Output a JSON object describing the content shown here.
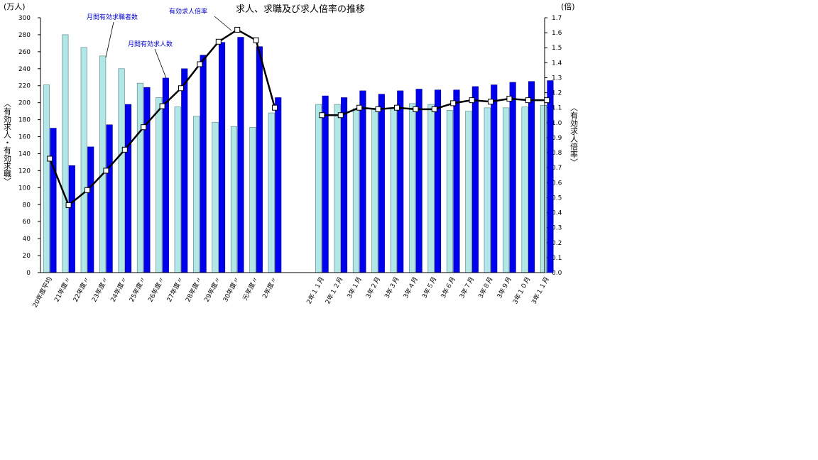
{
  "chart_data": {
    "type": "bar",
    "title": "求人、求職及び求人倍率の推移",
    "left_unit": "(万人)",
    "right_unit": "(倍)",
    "ylabel": "︿有効求人・有効求職﹀",
    "y2label": "︿有効求人倍率﹀",
    "ylim": [
      0,
      300
    ],
    "y2lim": [
      0,
      1.7
    ],
    "yticks": [
      "0",
      "20",
      "40",
      "60",
      "80",
      "100",
      "120",
      "140",
      "160",
      "180",
      "200",
      "220",
      "240",
      "260",
      "280",
      "300"
    ],
    "y2ticks": [
      "0.0",
      "0.1",
      "0.2",
      "0.3",
      "0.4",
      "0.5",
      "0.6",
      "0.7",
      "0.8",
      "0.9",
      "1.0",
      "1.1",
      "1.2",
      "1.3",
      "1.4",
      "1.5",
      "1.6",
      "1.7"
    ],
    "categories": [
      "20年度平均",
      "21年度〃",
      "22年度〃",
      "23年度〃",
      "24年度〃",
      "25年度〃",
      "26年度〃",
      "27年度〃",
      "28年度〃",
      "29年度〃",
      "30年度〃",
      "元年度〃",
      "2年度〃",
      "2年１１月",
      "2年１２月",
      "3年１月",
      "3年２月",
      "3年３月",
      "3年４月",
      "3年５月",
      "3年６月",
      "3年７月",
      "3年８月",
      "3年９月",
      "3年１０月",
      "3年１１月"
    ],
    "series": [
      {
        "name": "月間有効求職者数",
        "kind": "bar",
        "color": "#b3e6e6",
        "values": [
          221,
          280,
          265,
          255,
          240,
          223,
          206,
          195,
          184,
          177,
          172,
          171,
          188,
          198,
          198,
          193,
          192,
          193,
          199,
          198,
          191,
          190,
          194,
          194,
          195,
          197
        ]
      },
      {
        "name": "月間有効求人数",
        "kind": "bar",
        "color": "#0000ee",
        "values": [
          170,
          126,
          148,
          174,
          198,
          218,
          229,
          240,
          256,
          271,
          277,
          266,
          206,
          208,
          206,
          214,
          210,
          214,
          216,
          215,
          215,
          219,
          221,
          224,
          225,
          226
        ]
      },
      {
        "name": "有効求人倍率",
        "kind": "line",
        "axis": "right",
        "color": "#000000",
        "values": [
          0.76,
          0.45,
          0.55,
          0.68,
          0.82,
          0.97,
          1.11,
          1.23,
          1.39,
          1.54,
          1.62,
          1.55,
          1.1,
          1.05,
          1.05,
          1.1,
          1.09,
          1.1,
          1.09,
          1.09,
          1.13,
          1.15,
          1.14,
          1.16,
          1.15,
          1.15
        ]
      }
    ],
    "grid": false,
    "legend": "annotations"
  }
}
